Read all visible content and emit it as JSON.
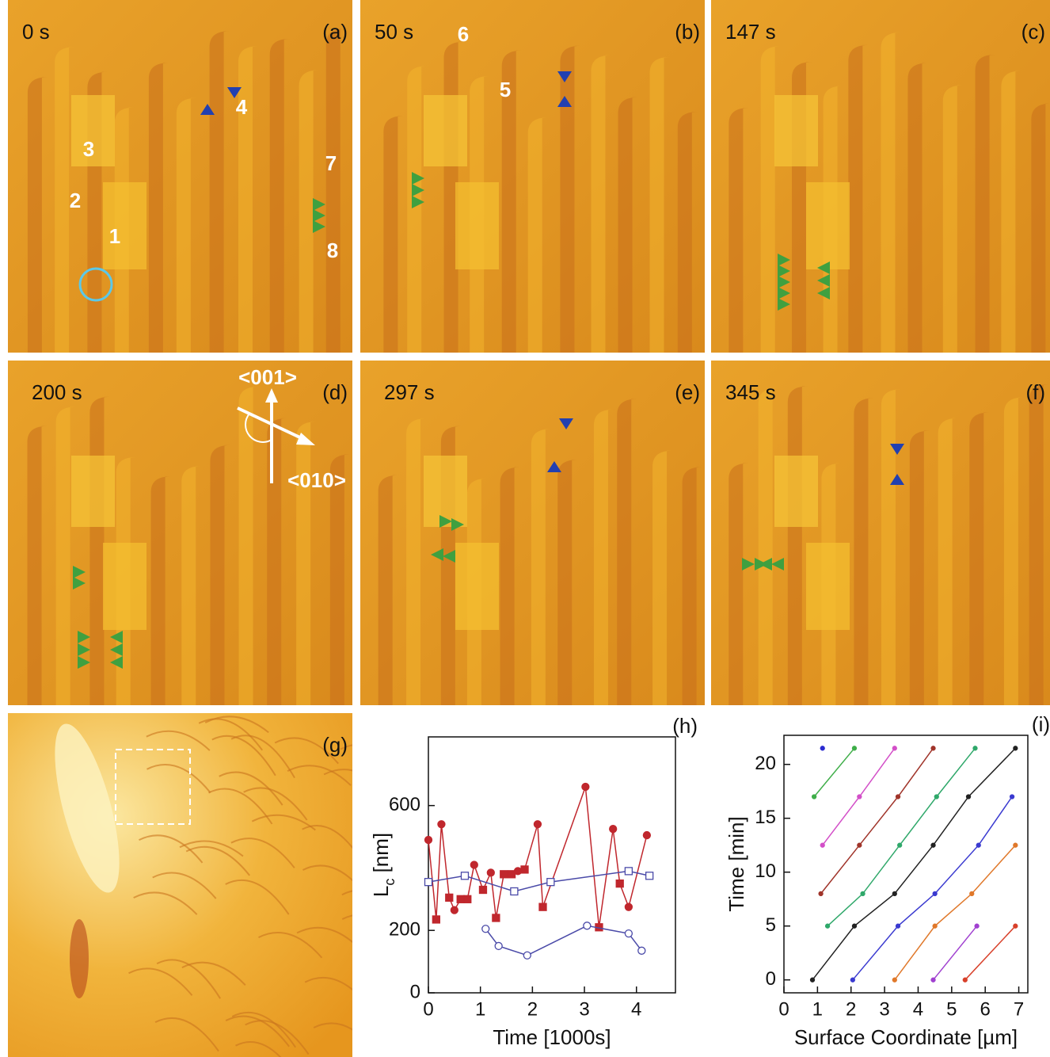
{
  "panels": [
    {
      "time": "0 s",
      "letter": "(a)",
      "numbers": [
        "1",
        "2",
        "3",
        "4",
        "7",
        "8"
      ]
    },
    {
      "time": "50 s",
      "letter": "(b)",
      "numbers": [
        "6",
        "5"
      ]
    },
    {
      "time": "147 s",
      "letter": "(c)"
    },
    {
      "time": "200 s",
      "letter": "(d)",
      "directions": [
        "<001>",
        "<010>"
      ]
    },
    {
      "time": "297 s",
      "letter": "(e)"
    },
    {
      "time": "345 s",
      "letter": "(f)"
    },
    {
      "letter": "(g)"
    }
  ],
  "chart_data": [
    {
      "type": "line",
      "label": "(h)",
      "x_label": "Time [1000s]",
      "y_label": [
        "L",
        "c",
        " [nm]"
      ],
      "xlim": [
        0,
        4.75
      ],
      "ylim": [
        0,
        820
      ],
      "xticks": [
        0,
        1,
        2,
        3,
        4
      ],
      "yticks": [
        0,
        200,
        600
      ],
      "series": [
        {
          "color": "#c0272d",
          "fill": true,
          "markers": [
            "circle",
            "square",
            "circle",
            "square",
            "circle",
            "square",
            "square",
            "circle",
            "square",
            "circle",
            "square",
            "square",
            "square",
            "circle",
            "square",
            "circle",
            "square",
            "circle",
            "square",
            "circle",
            "square",
            "circle",
            "circle"
          ],
          "x": [
            0,
            0.15,
            0.25,
            0.4,
            0.5,
            0.62,
            0.75,
            0.88,
            1.05,
            1.2,
            1.3,
            1.45,
            1.6,
            1.72,
            1.85,
            2.1,
            2.2,
            3.02,
            3.28,
            3.55,
            3.68,
            3.85,
            4.2
          ],
          "values": [
            490,
            235,
            540,
            305,
            265,
            300,
            300,
            410,
            330,
            385,
            240,
            380,
            380,
            390,
            395,
            540,
            275,
            660,
            210,
            525,
            350,
            275,
            505
          ]
        },
        {
          "color": "#4a4aa8",
          "fill": false,
          "marker": "square",
          "x": [
            0,
            0.7,
            1.65,
            2.35,
            3.85,
            4.25
          ],
          "values": [
            355,
            375,
            325,
            355,
            390,
            375
          ]
        },
        {
          "color": "#4a4aa8",
          "fill": false,
          "marker": "circle",
          "x": [
            1.1,
            1.35,
            1.9,
            3.05,
            3.85,
            4.1
          ],
          "values": [
            205,
            150,
            120,
            215,
            190,
            135
          ]
        }
      ]
    },
    {
      "type": "line",
      "label": "(i)",
      "x_label": "Surface Coordinate [µm]",
      "y_label": [
        "Time [min]"
      ],
      "xlim": [
        0,
        7.27
      ],
      "ylim": [
        -1.2,
        22.7
      ],
      "xticks": [
        0,
        1,
        2,
        3,
        4,
        5,
        6,
        7
      ],
      "yticks": [
        0,
        5,
        10,
        15,
        20
      ],
      "series": [
        {
          "color": "#2b2bd0",
          "x": [
            1.15
          ],
          "values": [
            21.5
          ]
        },
        {
          "color": "#3fae49",
          "x": [
            0.9,
            2.1
          ],
          "values": [
            17,
            21.5
          ]
        },
        {
          "color": "#d34fc8",
          "x": [
            1.15,
            2.25,
            3.3
          ],
          "values": [
            12.5,
            17,
            21.5
          ]
        },
        {
          "color": "#a0342a",
          "x": [
            1.1,
            2.25,
            3.4,
            4.45
          ],
          "values": [
            8,
            12.5,
            17,
            21.5
          ]
        },
        {
          "color": "#2fa86a",
          "x": [
            1.3,
            2.35,
            3.45,
            4.55,
            5.7
          ],
          "values": [
            5,
            8,
            12.5,
            17,
            21.5
          ]
        },
        {
          "color": "#222222",
          "x": [
            0.85,
            2.1,
            3.3,
            4.45,
            5.5,
            6.9
          ],
          "values": [
            0,
            5,
            8,
            12.5,
            17,
            21.5
          ]
        },
        {
          "color": "#3a3ad0",
          "x": [
            2.05,
            3.4,
            4.5,
            5.8,
            6.8
          ],
          "values": [
            0,
            5,
            8,
            12.5,
            17
          ]
        },
        {
          "color": "#e0782a",
          "x": [
            3.3,
            4.5,
            5.6,
            6.9
          ],
          "values": [
            0,
            5,
            8,
            12.5
          ]
        },
        {
          "color": "#a040d0",
          "x": [
            4.45,
            5.75
          ],
          "values": [
            0,
            5
          ]
        },
        {
          "color": "#d8402a",
          "x": [
            5.4,
            6.9
          ],
          "values": [
            0,
            5
          ]
        }
      ]
    }
  ]
}
